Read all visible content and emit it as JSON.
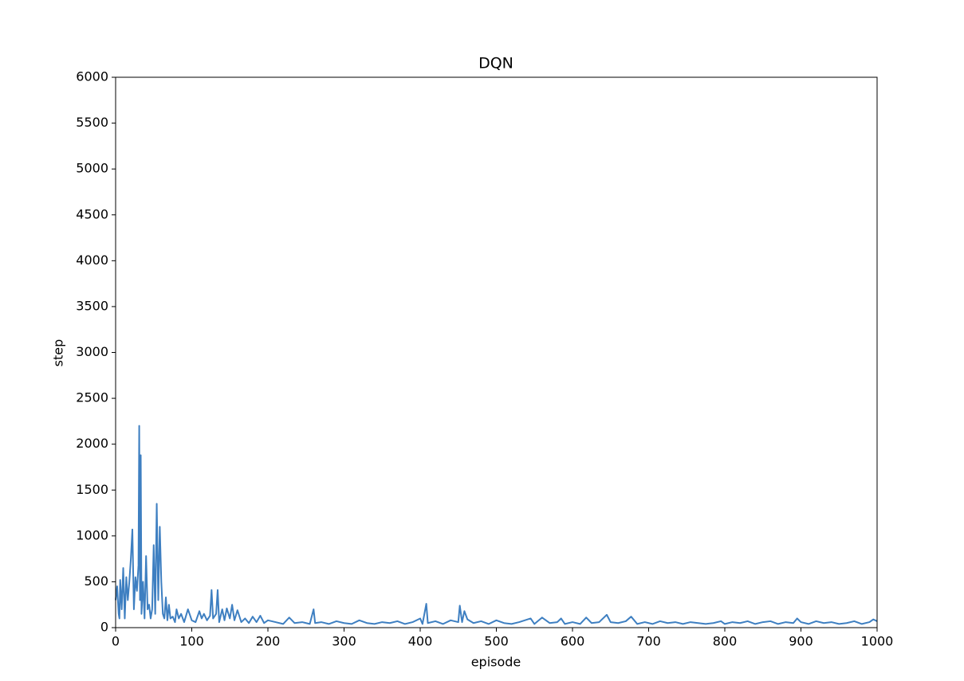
{
  "chart_data": {
    "type": "line",
    "title": "DQN",
    "x_label": "episode",
    "y_label": "step",
    "x": [
      0,
      2,
      4,
      5,
      6,
      8,
      10,
      12,
      14,
      16,
      18,
      20,
      22,
      24,
      26,
      28,
      30,
      31,
      32,
      33,
      34,
      36,
      38,
      40,
      42,
      44,
      46,
      48,
      50,
      52,
      54,
      56,
      58,
      60,
      62,
      64,
      66,
      68,
      70,
      72,
      75,
      78,
      80,
      83,
      86,
      90,
      95,
      100,
      105,
      110,
      113,
      116,
      120,
      124,
      126,
      128,
      132,
      134,
      136,
      140,
      143,
      146,
      150,
      153,
      156,
      160,
      165,
      170,
      175,
      180,
      185,
      190,
      195,
      200,
      210,
      220,
      228,
      235,
      245,
      255,
      260,
      262,
      270,
      280,
      290,
      300,
      310,
      320,
      330,
      340,
      350,
      360,
      370,
      380,
      390,
      400,
      403,
      408,
      410,
      420,
      430,
      440,
      450,
      452,
      455,
      458,
      462,
      470,
      480,
      490,
      500,
      510,
      520,
      530,
      545,
      550,
      560,
      570,
      580,
      585,
      590,
      600,
      610,
      618,
      625,
      635,
      645,
      650,
      660,
      670,
      677,
      685,
      695,
      705,
      715,
      725,
      735,
      745,
      755,
      765,
      775,
      785,
      795,
      800,
      810,
      820,
      830,
      840,
      850,
      860,
      870,
      880,
      890,
      895,
      900,
      910,
      920,
      930,
      940,
      950,
      960,
      970,
      980,
      990,
      995,
      1000
    ],
    "series": [
      {
        "name": "step",
        "color": "#3e7fc1",
        "values": [
          300,
          450,
          150,
          100,
          520,
          200,
          650,
          100,
          550,
          300,
          500,
          750,
          1070,
          200,
          550,
          400,
          680,
          2200,
          300,
          1880,
          150,
          500,
          100,
          780,
          200,
          250,
          100,
          200,
          900,
          150,
          1350,
          300,
          1100,
          500,
          150,
          100,
          330,
          80,
          250,
          100,
          120,
          60,
          200,
          100,
          150,
          60,
          200,
          80,
          60,
          180,
          100,
          150,
          80,
          130,
          410,
          100,
          150,
          410,
          60,
          200,
          80,
          210,
          100,
          250,
          80,
          190,
          60,
          100,
          50,
          120,
          60,
          130,
          50,
          80,
          60,
          40,
          110,
          50,
          60,
          40,
          200,
          50,
          60,
          40,
          70,
          50,
          40,
          80,
          50,
          40,
          60,
          50,
          70,
          40,
          60,
          100,
          40,
          260,
          50,
          70,
          40,
          80,
          60,
          240,
          60,
          180,
          90,
          50,
          70,
          40,
          80,
          50,
          40,
          60,
          100,
          40,
          110,
          50,
          60,
          100,
          40,
          60,
          40,
          110,
          50,
          60,
          140,
          60,
          50,
          70,
          120,
          40,
          60,
          40,
          70,
          50,
          60,
          40,
          60,
          50,
          40,
          50,
          70,
          40,
          60,
          50,
          70,
          40,
          60,
          70,
          40,
          60,
          50,
          100,
          60,
          40,
          70,
          50,
          60,
          40,
          50,
          70,
          40,
          60,
          90,
          70
        ]
      }
    ],
    "xlim": [
      0,
      1000
    ],
    "xticks": [
      0,
      100,
      200,
      300,
      400,
      500,
      600,
      700,
      800,
      900,
      1000
    ],
    "ylim": [
      0,
      6000
    ],
    "yticks": [
      0,
      500,
      1000,
      1500,
      2000,
      2500,
      3000,
      3500,
      4000,
      4500,
      5000,
      5500,
      6000
    ],
    "grid": false
  }
}
